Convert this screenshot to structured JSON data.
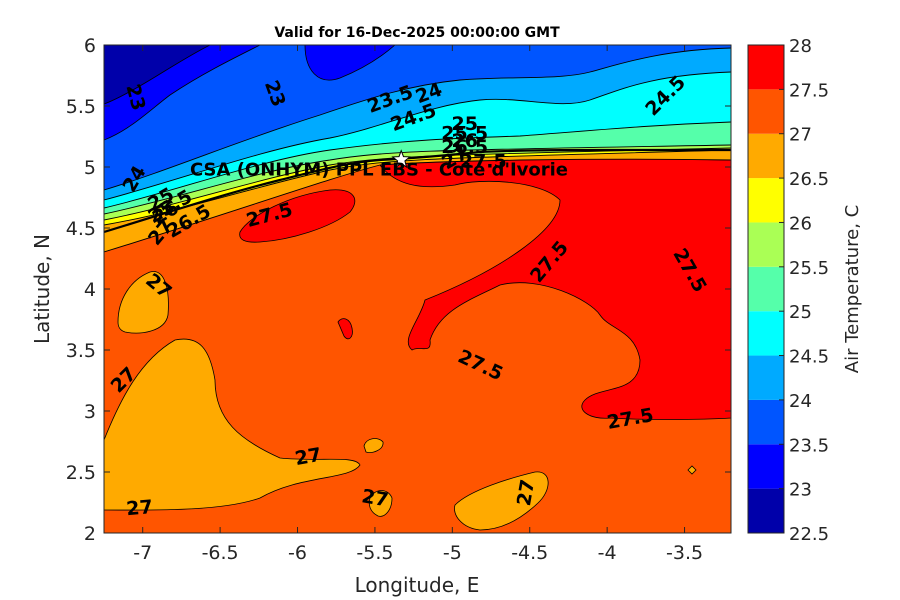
{
  "chart_data": {
    "type": "heatmap",
    "title": "Valid for 16-Dec-2025 00:00:00 GMT",
    "xlabel": "Longitude, E",
    "ylabel": "Latitude, N",
    "xlim": [
      -7.25,
      -3.2
    ],
    "ylim": [
      2,
      6
    ],
    "xticks": [
      -7,
      -6.5,
      -6,
      -5.5,
      -5,
      -4.5,
      -4,
      -3.5
    ],
    "xtick_labels": [
      "-7",
      "-6.5",
      "-6",
      "-5.5",
      "-5",
      "-4.5",
      "-4",
      "-3.5"
    ],
    "yticks": [
      2,
      2.5,
      3,
      3.5,
      4,
      4.5,
      5,
      5.5,
      6
    ],
    "ytick_labels": [
      "2",
      "2.5",
      "3",
      "3.5",
      "4",
      "4.5",
      "5",
      "5.5",
      "6"
    ],
    "colorbar": {
      "label": "Air Temperature, C",
      "range": [
        22.5,
        28
      ],
      "ticks": [
        "22.5",
        "23",
        "23.5",
        "24",
        "24.5",
        "25",
        "25.5",
        "26",
        "26.5",
        "27",
        "27.5",
        "28"
      ],
      "levels": [
        {
          "from": 22.5,
          "to": 23.0,
          "color": "#0000aa"
        },
        {
          "from": 23.0,
          "to": 23.5,
          "color": "#0000ff"
        },
        {
          "from": 23.5,
          "to": 24.0,
          "color": "#0055ff"
        },
        {
          "from": 24.0,
          "to": 24.5,
          "color": "#00aaff"
        },
        {
          "from": 24.5,
          "to": 25.0,
          "color": "#00ffff"
        },
        {
          "from": 25.0,
          "to": 25.5,
          "color": "#55ffaa"
        },
        {
          "from": 25.5,
          "to": 26.0,
          "color": "#aaff55"
        },
        {
          "from": 26.0,
          "to": 26.5,
          "color": "#ffff00"
        },
        {
          "from": 26.5,
          "to": 27.0,
          "color": "#ffaa00"
        },
        {
          "from": 27.0,
          "to": 27.5,
          "color": "#ff5500"
        },
        {
          "from": 27.5,
          "to": 28.0,
          "color": "#ff0000"
        }
      ]
    },
    "site": {
      "name": "CSA (ONHYM) PPL EBS - Cote d'Ivorie",
      "lon": -5.33,
      "lat": 5.06
    },
    "contour_labels": [
      {
        "text": "23",
        "lon": -7.05,
        "lat": 5.57,
        "rot": 75
      },
      {
        "text": "23",
        "lon": -6.15,
        "lat": 5.6,
        "rot": 70
      },
      {
        "text": "23.5",
        "lon": -5.4,
        "lat": 5.55,
        "rot": -20
      },
      {
        "text": "24",
        "lon": -5.15,
        "lat": 5.6,
        "rot": -20
      },
      {
        "text": "24.5",
        "lon": -5.25,
        "lat": 5.4,
        "rot": -20
      },
      {
        "text": "24.5",
        "lon": -3.62,
        "lat": 5.58,
        "rot": -45
      },
      {
        "text": "25",
        "lon": -4.92,
        "lat": 5.35,
        "rot": 0
      },
      {
        "text": "25.5",
        "lon": -4.92,
        "lat": 5.27,
        "rot": 0
      },
      {
        "text": "26",
        "lon": -4.92,
        "lat": 5.21,
        "rot": 0
      },
      {
        "text": "26.5",
        "lon": -4.92,
        "lat": 5.16,
        "rot": 0
      },
      {
        "text": "27",
        "lon": -4.98,
        "lat": 5.07,
        "rot": -30
      },
      {
        "text": "27.5",
        "lon": -4.8,
        "lat": 5.04,
        "rot": 0
      },
      {
        "text": "24",
        "lon": -7.05,
        "lat": 4.9,
        "rot": -60
      },
      {
        "text": "25",
        "lon": -6.88,
        "lat": 4.73,
        "rot": -30
      },
      {
        "text": "25.5",
        "lon": -6.82,
        "lat": 4.67,
        "rot": -30
      },
      {
        "text": "26",
        "lon": -6.85,
        "lat": 4.62,
        "rot": -30
      },
      {
        "text": "26.5",
        "lon": -6.7,
        "lat": 4.55,
        "rot": -30
      },
      {
        "text": "27",
        "lon": -6.88,
        "lat": 4.46,
        "rot": -50
      },
      {
        "text": "27.5",
        "lon": -6.18,
        "lat": 4.6,
        "rot": -15
      },
      {
        "text": "27",
        "lon": -6.9,
        "lat": 4.02,
        "rot": 40
      },
      {
        "text": "27.5",
        "lon": -4.37,
        "lat": 4.22,
        "rot": -50
      },
      {
        "text": "27.5",
        "lon": -3.47,
        "lat": 4.15,
        "rot": 60
      },
      {
        "text": "27.5",
        "lon": -4.82,
        "lat": 3.37,
        "rot": 25
      },
      {
        "text": "27.5",
        "lon": -3.85,
        "lat": 2.93,
        "rot": -10
      },
      {
        "text": "27",
        "lon": -7.12,
        "lat": 3.25,
        "rot": -45
      },
      {
        "text": "27",
        "lon": -5.93,
        "lat": 2.62,
        "rot": -10
      },
      {
        "text": "27",
        "lon": -7.02,
        "lat": 2.2,
        "rot": -5
      },
      {
        "text": "27",
        "lon": -5.5,
        "lat": 2.28,
        "rot": 10
      },
      {
        "text": "27",
        "lon": -4.52,
        "lat": 2.33,
        "rot": -80
      }
    ]
  }
}
